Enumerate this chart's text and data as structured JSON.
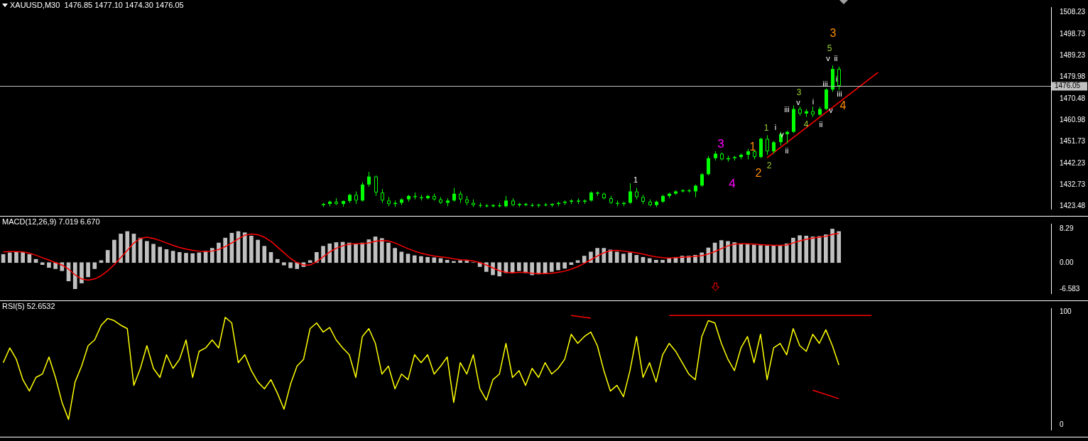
{
  "chart_data": [
    {
      "type": "candlestick",
      "title": "XAUUSD,M30  1476.85 1477.10 1474.30 1476.05",
      "color": "#00ff00",
      "categories": [
        null,
        null,
        null,
        null,
        null,
        null,
        null,
        null,
        null,
        null,
        null,
        null,
        null,
        null,
        null,
        null,
        null,
        null,
        null,
        null,
        null,
        null,
        null,
        null,
        null,
        null,
        null,
        null,
        null,
        null,
        null,
        null,
        null,
        null,
        null,
        null,
        null,
        null,
        null,
        null,
        null,
        null,
        null,
        null,
        null,
        null,
        null,
        null,
        null,
        null,
        null,
        null,
        null,
        null,
        null,
        null,
        null,
        null,
        null,
        null,
        null,
        null,
        null,
        null,
        null,
        null,
        null,
        null,
        null,
        null,
        null,
        null,
        null,
        null,
        null,
        null,
        null,
        null,
        null,
        null,
        null,
        null,
        null,
        null,
        null,
        null,
        null,
        null,
        null,
        null,
        null,
        null,
        null,
        null,
        null,
        null,
        null,
        null,
        null,
        null,
        null,
        null,
        null,
        null,
        null,
        null,
        null,
        null,
        null,
        null,
        null,
        null,
        null,
        null,
        null,
        null,
        null,
        null,
        null,
        null,
        null,
        null,
        null,
        null,
        null,
        null,
        null,
        null,
        null,
        null,
        null,
        null,
        null,
        null,
        null,
        null,
        null,
        null,
        null,
        null,
        null,
        null,
        null,
        null,
        null,
        null,
        null,
        null,
        null,
        null,
        null,
        null,
        null,
        null,
        null,
        null,
        null,
        null,
        null,
        null,
        null
      ],
      "ohlc": [
        null,
        null,
        null,
        null,
        null,
        null,
        null,
        null,
        null,
        null,
        null,
        null,
        null,
        null,
        null,
        null,
        null,
        null,
        null,
        null,
        null,
        null,
        null,
        null,
        null,
        null,
        null,
        null,
        null,
        null,
        null,
        null,
        null,
        null,
        null,
        null,
        null,
        null,
        null,
        null,
        null,
        null,
        null,
        null,
        null,
        null,
        null,
        null,
        null,
        [
          1424.0,
          1425.0,
          1423.2,
          1424.5
        ],
        [
          1424.5,
          1426,
          1423.5,
          1425.5
        ],
        [
          1425.5,
          1427,
          1424,
          1424.5
        ],
        [
          1424.5,
          1426,
          1423.3,
          1425.8
        ],
        [
          1425.8,
          1429,
          1425,
          1428.5
        ],
        [
          1428.5,
          1430,
          1424.5,
          1426
        ],
        [
          1426,
          1434,
          1425.5,
          1433
        ],
        [
          1433,
          1438.5,
          1432,
          1436.5
        ],
        [
          1436.5,
          1437,
          1428,
          1429.5
        ],
        [
          1429.5,
          1431,
          1425,
          1426
        ],
        [
          1426,
          1427.5,
          1423.5,
          1424.5
        ],
        [
          1424.5,
          1426,
          1423.2,
          1425
        ],
        [
          1425,
          1427,
          1424,
          1426.5
        ],
        [
          1426.5,
          1428.5,
          1425.5,
          1428
        ],
        [
          1428,
          1429.5,
          1426.5,
          1427.5
        ],
        [
          1427.5,
          1428.5,
          1426,
          1427
        ],
        [
          1427,
          1428.5,
          1426.5,
          1428
        ],
        [
          1428,
          1429,
          1426,
          1426.5
        ],
        [
          1426.5,
          1427.5,
          1424.5,
          1425
        ],
        [
          1425,
          1427,
          1423.5,
          1426
        ],
        [
          1426,
          1431.5,
          1425.5,
          1429
        ],
        [
          1429,
          1430,
          1425,
          1426.5
        ],
        [
          1426.5,
          1428,
          1424,
          1425
        ],
        [
          1425,
          1426.5,
          1423.2,
          1424
        ],
        [
          1424,
          1425,
          1423,
          1423.8
        ],
        [
          1423.8,
          1424.5,
          1423,
          1423.5
        ],
        [
          1423.5,
          1424.5,
          1423,
          1424
        ],
        [
          1424,
          1425,
          1423,
          1423.5
        ],
        [
          1423.5,
          1428,
          1423,
          1426
        ],
        [
          1426,
          1427,
          1423.5,
          1424
        ],
        [
          1424,
          1425,
          1423.2,
          1424.5
        ],
        [
          1424.5,
          1425,
          1423.5,
          1424
        ],
        [
          1424,
          1424.8,
          1423.2,
          1423.8
        ],
        [
          1423.8,
          1424.5,
          1423,
          1424.2
        ],
        [
          1424.2,
          1425,
          1423.5,
          1424
        ],
        [
          1424,
          1424.8,
          1423.2,
          1424.5
        ],
        [
          1424.5,
          1425.5,
          1423.5,
          1425
        ],
        [
          1425,
          1426,
          1424,
          1425.5
        ],
        [
          1425.5,
          1426.5,
          1424.5,
          1426
        ],
        [
          1426,
          1427,
          1424.5,
          1425.5
        ],
        [
          1425.5,
          1426.5,
          1424.5,
          1426
        ],
        [
          1426,
          1430,
          1425.5,
          1429.5
        ],
        [
          1429.5,
          1430,
          1428,
          1429
        ],
        [
          1429,
          1429.5,
          1426.5,
          1427
        ],
        [
          1427,
          1428,
          1424.5,
          1425
        ],
        [
          1425,
          1426,
          1423.5,
          1424.5
        ],
        [
          1424.5,
          1425.5,
          1423.5,
          1425
        ],
        [
          1425,
          1433.5,
          1424.5,
          1430
        ],
        [
          1430,
          1431.5,
          1426.5,
          1427.5
        ],
        [
          1427.5,
          1428.5,
          1424.5,
          1425.5
        ],
        [
          1425.5,
          1426.5,
          1423.5,
          1424
        ],
        [
          1424,
          1426,
          1423.2,
          1425.5
        ],
        [
          1425.5,
          1428.5,
          1425,
          1428
        ],
        [
          1428,
          1429.5,
          1427,
          1429
        ],
        [
          1429,
          1430.5,
          1428.5,
          1430
        ],
        [
          1430,
          1431,
          1429.5,
          1430.5
        ],
        [
          1430.5,
          1431,
          1429.5,
          1430
        ],
        [
          1430,
          1433,
          1427.5,
          1432.5
        ],
        [
          1432.5,
          1438,
          1432,
          1437.5
        ],
        [
          1437.5,
          1445.5,
          1437,
          1444.5
        ],
        [
          1444.5,
          1447.5,
          1443.5,
          1446.5
        ],
        [
          1446.5,
          1447,
          1443.5,
          1444
        ],
        [
          1444,
          1445.5,
          1443,
          1444.5
        ],
        [
          1444.5,
          1445.5,
          1443.5,
          1445
        ],
        [
          1445,
          1446.5,
          1444,
          1446
        ],
        [
          1446,
          1448.5,
          1444,
          1447.5
        ],
        [
          1447.5,
          1448,
          1444,
          1445
        ],
        [
          1445,
          1453.5,
          1444.5,
          1453
        ],
        [
          1453,
          1454.5,
          1446,
          1447.5
        ],
        [
          1447.5,
          1452,
          1446.5,
          1451.5
        ],
        [
          1451.5,
          1456,
          1450,
          1455
        ],
        [
          1455,
          1456.5,
          1451,
          1456
        ],
        [
          1456,
          1467.5,
          1455.5,
          1466
        ],
        [
          1466,
          1467,
          1463,
          1464
        ],
        [
          1464,
          1466,
          1462.5,
          1465
        ],
        [
          1465,
          1467,
          1462.5,
          1463.5
        ],
        [
          1463.5,
          1467,
          1463,
          1466
        ],
        [
          1466,
          1475,
          1465.5,
          1474.5
        ],
        [
          1474.5,
          1485,
          1473.5,
          1483.5
        ],
        [
          1483.5,
          1484.5,
          1474.3,
          1476.05
        ],
        null,
        null,
        null,
        null,
        null,
        null,
        null,
        null,
        null,
        null,
        null,
        null,
        null,
        null,
        null,
        null,
        null,
        null,
        null,
        null,
        null,
        null,
        null,
        null,
        null,
        null,
        null,
        null,
        null,
        null,
        null,
        null
      ],
      "series": [
        {
          "type": "line",
          "color": "#ff0000",
          "values": [
            null,
            null,
            null,
            null,
            null,
            null,
            null,
            null,
            null,
            null,
            null,
            null,
            null,
            null,
            null,
            null,
            null,
            null,
            null,
            null,
            null,
            null,
            null,
            null,
            null,
            null,
            null,
            null,
            null,
            null,
            null,
            null,
            null,
            null,
            null,
            null,
            null,
            null,
            null,
            null,
            null,
            null,
            null,
            null,
            null,
            null,
            null,
            null,
            null,
            null,
            null,
            null,
            null,
            null,
            null,
            null,
            null,
            null,
            null,
            null,
            null,
            null,
            null,
            null,
            null,
            null,
            null,
            null,
            null,
            null,
            null,
            null,
            null,
            null,
            null,
            null,
            null,
            null,
            null,
            null,
            null,
            null,
            null,
            null,
            null,
            null,
            null,
            null,
            null,
            null,
            null,
            null,
            null,
            null,
            null,
            null,
            null,
            null,
            null,
            null,
            null,
            null,
            null,
            null,
            null,
            null,
            null,
            null,
            null,
            null,
            null,
            null,
            null,
            null,
            null,
            null,
            null,
            1444.7,
            null,
            null,
            null,
            null,
            null,
            null,
            null,
            null,
            null,
            null,
            null,
            null,
            null,
            null,
            null,
            null,
            1482.0,
            null,
            null,
            null,
            null,
            null,
            null,
            null,
            null,
            null,
            null,
            null,
            null,
            null,
            null,
            null,
            null,
            null,
            null,
            null,
            null,
            null,
            null,
            null,
            null,
            null,
            null
          ]
        }
      ],
      "ylim": [
        1422.4,
        1510.5
      ],
      "yticks": [
        1508.23,
        1498.73,
        1489.23,
        1479.98,
        1470.48,
        1460.98,
        1451.73,
        1442.23,
        1432.73,
        1423.48
      ],
      "ref_lines": [
        {
          "axis": "y",
          "value": 1476.05,
          "label": "1476.05",
          "color": "#c0c0c0"
        }
      ],
      "annotations": [
        "1",
        "3",
        "4",
        "1",
        "2",
        "1",
        "2",
        "i",
        "ii",
        "iii",
        "v",
        "3",
        "v",
        "i",
        "4",
        "ii",
        "v",
        "iii",
        "5",
        "3",
        "v",
        "ii",
        "i",
        "iii",
        "4"
      ]
    },
    {
      "type": "bar",
      "title": "MACD(12,26,9) 7.019 6.670",
      "categories": [
        null,
        null,
        null,
        null,
        null,
        null,
        null,
        null,
        null,
        null,
        null,
        null,
        null,
        null,
        null,
        null,
        null,
        null,
        null,
        null,
        null,
        null,
        null,
        null,
        null,
        null,
        null,
        null,
        null,
        null,
        null,
        null,
        null,
        null,
        null,
        null,
        null,
        null,
        null,
        null,
        null,
        null,
        null,
        null,
        null,
        null,
        null,
        null,
        null,
        null,
        null,
        null,
        null,
        null,
        null,
        null,
        null,
        null,
        null,
        null,
        null,
        null,
        null,
        null,
        null,
        null,
        null,
        null,
        null,
        null,
        null,
        null,
        null,
        null,
        null,
        null,
        null,
        null,
        null,
        null,
        null,
        null,
        null,
        null,
        null,
        null,
        null,
        null,
        null,
        null,
        null,
        null,
        null,
        null,
        null,
        null,
        null,
        null,
        null,
        null,
        null,
        null,
        null,
        null,
        null,
        null,
        null,
        null,
        null,
        null,
        null,
        null,
        null,
        null,
        null,
        null,
        null,
        null,
        null,
        null,
        null,
        null,
        null,
        null,
        null,
        null,
        null,
        null,
        null,
        null,
        null,
        null,
        null,
        null,
        null,
        null,
        null,
        null,
        null,
        null,
        null,
        null,
        null,
        null,
        null,
        null,
        null,
        null,
        null,
        null,
        null,
        null,
        null,
        null,
        null,
        null,
        null,
        null,
        null,
        null,
        null
      ],
      "series": [
        {
          "type": "bar",
          "color": "#c0c0c0",
          "values": [
            2.0,
            2.4,
            2.6,
            2.5,
            2.0,
            0.8,
            -0.5,
            -1.2,
            -1.5,
            -2.0,
            -4.5,
            -6.4,
            -5.0,
            -3.5,
            -1.5,
            0.5,
            3.0,
            5.5,
            7.0,
            7.6,
            7.0,
            6.0,
            5.2,
            4.5,
            3.8,
            3.2,
            2.8,
            2.5,
            2.3,
            2.2,
            2.4,
            2.8,
            3.5,
            4.8,
            6.0,
            7.2,
            7.6,
            7.3,
            6.5,
            5.5,
            4.0,
            2.5,
            0.8,
            -0.6,
            -1.3,
            -1.5,
            -1.0,
            0.5,
            2.5,
            4.0,
            4.6,
            4.9,
            5.0,
            4.8,
            4.6,
            4.8,
            5.6,
            6.3,
            5.9,
            4.8,
            3.5,
            2.6,
            2.1,
            1.7,
            1.5,
            1.3,
            1.2,
            1.0,
            0.6,
            0.3,
            0.5,
            0.4,
            0.0,
            -1.0,
            -2.2,
            -3.0,
            -3.3,
            -2.5,
            -2.4,
            -2.0,
            -2.5,
            -3.0,
            -2.8,
            -2.6,
            -2.2,
            -1.8,
            -1.4,
            -0.5,
            0.5,
            1.6,
            2.6,
            3.5,
            3.5,
            3.1,
            2.6,
            2.1,
            2.4,
            1.8,
            1.3,
            1.0,
            0.6,
            0.6,
            1.0,
            1.3,
            1.6,
            1.6,
            1.8,
            2.4,
            3.6,
            4.8,
            5.4,
            5.2,
            4.9,
            4.6,
            4.4,
            4.3,
            4.2,
            4.1,
            4.1,
            4.2,
            4.6,
            6.0,
            6.6,
            6.5,
            6.3,
            6.4,
            6.8,
            8.2,
            7.6,
            null,
            null,
            null,
            null,
            null,
            null,
            null,
            null,
            null,
            null,
            null,
            null,
            null,
            null,
            null,
            null,
            null,
            null,
            null,
            null,
            null,
            null,
            null,
            null,
            null,
            null,
            null,
            null,
            null,
            null,
            null,
            null
          ]
        },
        {
          "type": "line",
          "color": "#ff0000",
          "values": [
            2.6,
            2.7,
            2.7,
            2.6,
            2.3,
            1.8,
            1.2,
            0.6,
            0.0,
            -0.6,
            -1.6,
            -3.0,
            -4.0,
            -4.3,
            -4.0,
            -3.2,
            -2.0,
            -0.5,
            1.2,
            3.0,
            4.8,
            5.9,
            6.2,
            5.9,
            5.4,
            4.8,
            4.2,
            3.7,
            3.3,
            3.0,
            2.8,
            2.7,
            2.8,
            3.2,
            3.9,
            4.8,
            5.8,
            6.7,
            7.0,
            6.8,
            6.2,
            5.2,
            3.8,
            2.4,
            1.0,
            0.0,
            -0.6,
            -0.6,
            0.2,
            1.4,
            2.6,
            3.5,
            4.1,
            4.5,
            4.6,
            4.6,
            4.8,
            5.2,
            5.4,
            5.3,
            4.8,
            4.1,
            3.4,
            2.8,
            2.3,
            1.9,
            1.6,
            1.4,
            1.2,
            0.9,
            0.7,
            0.6,
            0.4,
            0.0,
            -0.6,
            -1.3,
            -2.0,
            -2.4,
            -2.5,
            -2.4,
            -2.4,
            -2.6,
            -2.7,
            -2.7,
            -2.6,
            -2.4,
            -2.1,
            -1.6,
            -1.0,
            -0.2,
            0.7,
            1.6,
            2.4,
            2.9,
            3.0,
            2.8,
            2.6,
            2.4,
            2.1,
            1.7,
            1.4,
            1.2,
            1.1,
            1.2,
            1.3,
            1.4,
            1.5,
            1.7,
            2.1,
            2.7,
            3.4,
            4.1,
            4.5,
            4.6,
            4.6,
            4.5,
            4.4,
            4.3,
            4.2,
            4.2,
            4.3,
            4.8,
            5.3,
            5.7,
            6.0,
            6.2,
            6.4,
            6.9,
            7.1,
            null,
            null,
            null,
            null,
            null,
            null,
            null,
            null,
            null,
            null,
            null,
            null,
            null,
            null,
            null,
            null,
            null,
            null,
            null,
            null,
            null,
            null,
            null,
            null,
            null,
            null,
            null,
            null,
            null,
            null,
            null,
            null
          ]
        }
      ],
      "ylim": [
        -7.5,
        9.5
      ],
      "yticks": [
        8.29,
        {
          "value": 0,
          "label": "0.00"
        },
        -6.583
      ]
    },
    {
      "type": "line",
      "title": "RSI(5) 52.6532",
      "categories": [
        null,
        null,
        null,
        null,
        null,
        null,
        null,
        null,
        null,
        null,
        null,
        null,
        null,
        null,
        null,
        null,
        null,
        null,
        null,
        null,
        null,
        null,
        null,
        null,
        null,
        null,
        null,
        null,
        null,
        null,
        null,
        null,
        null,
        null,
        null,
        null,
        null,
        null,
        null,
        null,
        null,
        null,
        null,
        null,
        null,
        null,
        null,
        null,
        null,
        null,
        null,
        null,
        null,
        null,
        null,
        null,
        null,
        null,
        null,
        null,
        null,
        null,
        null,
        null,
        null,
        null,
        null,
        null,
        null,
        null,
        null,
        null,
        null,
        null,
        null,
        null,
        null,
        null,
        null,
        null,
        null,
        null,
        null,
        null,
        null,
        null,
        null,
        null,
        null,
        null,
        null,
        null,
        null,
        null,
        null,
        null,
        null,
        null,
        null,
        null,
        null,
        null,
        null,
        null,
        null,
        null,
        null,
        null,
        null,
        null,
        null,
        null,
        null,
        null,
        null,
        null,
        null,
        null,
        null,
        null,
        null,
        null,
        null,
        null,
        null,
        null,
        null,
        null,
        null,
        null,
        null,
        null,
        null,
        null,
        null,
        null,
        null,
        null,
        null,
        null,
        null,
        null,
        null,
        null,
        null,
        null,
        null,
        null,
        null,
        null,
        null,
        null,
        null,
        null,
        null,
        null,
        null,
        null,
        null,
        null,
        null
      ],
      "series": [
        {
          "color": "#ffff00",
          "values": [
            55,
            68,
            58,
            40,
            30,
            42,
            45,
            60,
            42,
            20,
            5,
            38,
            52,
            70,
            75,
            88,
            94,
            92,
            88,
            85,
            35,
            50,
            70,
            50,
            42,
            62,
            50,
            58,
            75,
            42,
            65,
            68,
            75,
            68,
            95,
            90,
            55,
            62,
            48,
            38,
            32,
            40,
            28,
            14,
            36,
            52,
            58,
            85,
            90,
            82,
            86,
            75,
            68,
            62,
            42,
            78,
            85,
            72,
            45,
            52,
            32,
            45,
            40,
            62,
            55,
            62,
            45,
            52,
            60,
            20,
            55,
            45,
            62,
            32,
            22,
            40,
            45,
            72,
            42,
            48,
            35,
            50,
            42,
            55,
            45,
            50,
            58,
            80,
            72,
            78,
            82,
            70,
            48,
            30,
            35,
            25,
            48,
            78,
            42,
            55,
            38,
            62,
            72,
            65,
            55,
            45,
            40,
            78,
            92,
            90,
            72,
            58,
            48,
            68,
            78,
            55,
            80,
            40,
            68,
            72,
            62,
            85,
            70,
            65,
            80,
            72,
            84,
            70,
            53,
            null,
            null,
            null,
            null,
            null,
            null,
            null,
            null,
            null,
            null,
            null,
            null,
            null,
            null,
            null,
            null,
            null,
            null,
            null,
            null,
            null,
            null,
            null,
            null,
            null,
            null,
            null,
            null,
            null,
            null,
            null,
            null
          ]
        },
        {
          "type": "line",
          "color": "#ff0000",
          "values": [
            null,
            null,
            null,
            null,
            null,
            null,
            null,
            null,
            null,
            null,
            null,
            null,
            null,
            null,
            null,
            null,
            null,
            null,
            null,
            null,
            null,
            null,
            null,
            null,
            null,
            null,
            null,
            null,
            null,
            null,
            null,
            null,
            null,
            null,
            null,
            null,
            null,
            null,
            null,
            null,
            null,
            null,
            null,
            null,
            null,
            null,
            null,
            null,
            null,
            null,
            null,
            null,
            null,
            null,
            null,
            null,
            null,
            null,
            null,
            null,
            null,
            null,
            null,
            null,
            null,
            null,
            null,
            null,
            null,
            null,
            null,
            null,
            null,
            null,
            null,
            null,
            null,
            null,
            null,
            null,
            null,
            null,
            null,
            null,
            null,
            null,
            null,
            96.6,
            null,
            null,
            94.3,
            null,
            null,
            null,
            null,
            null,
            null,
            null,
            null,
            null,
            null,
            null,
            null,
            null,
            null,
            null,
            null,
            null,
            null,
            null,
            null,
            null,
            null,
            null,
            null,
            null,
            null,
            null,
            null,
            null,
            null,
            null,
            null,
            null,
            null,
            null,
            null,
            null,
            null,
            null,
            null,
            null,
            null,
            null,
            null,
            null,
            null,
            null,
            null,
            null,
            null,
            null,
            null,
            null,
            null,
            null,
            null,
            null,
            null,
            null,
            null,
            null,
            null,
            null,
            null,
            null,
            null,
            null,
            null,
            null,
            null
          ]
        },
        {
          "type": "line",
          "color": "#ff0000",
          "values": [
            null,
            null,
            null,
            null,
            null,
            null,
            null,
            null,
            null,
            null,
            null,
            null,
            null,
            null,
            null,
            null,
            null,
            null,
            null,
            null,
            null,
            null,
            null,
            null,
            null,
            null,
            null,
            null,
            null,
            null,
            null,
            null,
            null,
            null,
            null,
            null,
            null,
            null,
            null,
            null,
            null,
            null,
            null,
            null,
            null,
            null,
            null,
            null,
            null,
            null,
            null,
            null,
            null,
            null,
            null,
            null,
            null,
            null,
            null,
            null,
            null,
            null,
            null,
            null,
            null,
            null,
            null,
            null,
            null,
            null,
            null,
            null,
            null,
            null,
            null,
            null,
            null,
            null,
            null,
            null,
            null,
            null,
            null,
            null,
            null,
            null,
            null,
            null,
            null,
            null,
            null,
            null,
            null,
            null,
            null,
            null,
            null,
            null,
            null,
            null,
            null,
            null,
            96.6,
            null,
            null,
            null,
            null,
            null,
            null,
            null,
            null,
            null,
            null,
            null,
            null,
            null,
            null,
            null,
            null,
            null,
            null,
            null,
            null,
            null,
            null,
            null,
            null,
            null,
            null,
            null,
            null,
            null,
            null,
            96.6,
            null,
            null,
            null,
            null,
            null,
            null,
            null,
            null,
            null,
            null,
            null,
            null,
            null,
            null,
            null,
            null,
            null,
            null,
            null,
            null,
            null,
            null,
            null,
            null,
            null,
            null,
            null
          ]
        },
        {
          "type": "line",
          "color": "#ff0000",
          "values": [
            null,
            null,
            null,
            null,
            null,
            null,
            null,
            null,
            null,
            null,
            null,
            null,
            null,
            null,
            null,
            null,
            null,
            null,
            null,
            null,
            null,
            null,
            null,
            null,
            null,
            null,
            null,
            null,
            null,
            null,
            null,
            null,
            null,
            null,
            null,
            null,
            null,
            null,
            null,
            null,
            null,
            null,
            null,
            null,
            null,
            null,
            null,
            null,
            null,
            null,
            null,
            null,
            null,
            null,
            null,
            null,
            null,
            null,
            null,
            null,
            null,
            null,
            null,
            null,
            null,
            null,
            null,
            null,
            null,
            null,
            null,
            null,
            null,
            null,
            null,
            null,
            null,
            null,
            null,
            null,
            null,
            null,
            null,
            null,
            null,
            null,
            null,
            null,
            null,
            null,
            null,
            null,
            null,
            null,
            null,
            null,
            null,
            null,
            null,
            null,
            null,
            null,
            null,
            null,
            null,
            null,
            null,
            null,
            null,
            null,
            null,
            null,
            null,
            null,
            null,
            null,
            null,
            null,
            null,
            null,
            null,
            null,
            null,
            null,
            30.7,
            null,
            null,
            null,
            23.3,
            null,
            null,
            null,
            null,
            null,
            null,
            null,
            null,
            null,
            null,
            null,
            null,
            null,
            null,
            null,
            null,
            null,
            null,
            null,
            null,
            null,
            null,
            null,
            null,
            null,
            null,
            null,
            null,
            null,
            null,
            null,
            null
          ]
        }
      ],
      "ylim": [
        -4,
        103
      ],
      "yticks": [
        100,
        0
      ]
    }
  ]
}
